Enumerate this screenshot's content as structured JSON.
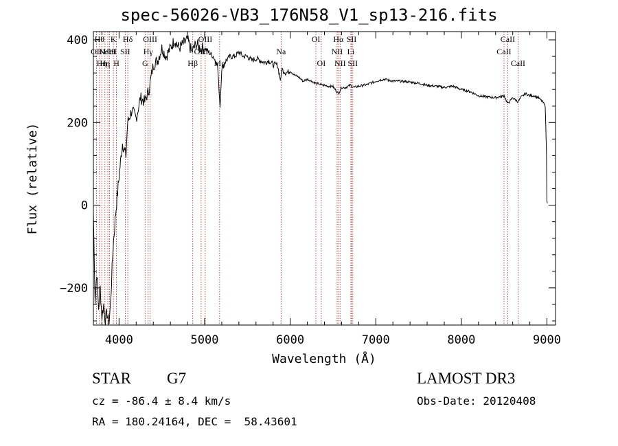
{
  "chart_data": {
    "type": "line",
    "title": "spec-56026-VB3_176N58_V1_sp13-216.fits",
    "xlabel": "Wavelength (Å)",
    "ylabel": "Flux (relative)",
    "xlim": [
      3700,
      9100
    ],
    "ylim": [
      -290,
      420
    ],
    "x_ticks": [
      4000,
      5000,
      6000,
      7000,
      8000,
      9000
    ],
    "x_tick_labels": [
      "4000",
      "5000",
      "6000",
      "7000",
      "8000",
      "9000"
    ],
    "y_ticks": [
      -200,
      0,
      200,
      400
    ],
    "y_tick_labels": [
      "−200",
      "0",
      "200",
      "400"
    ],
    "series": [
      {
        "name": "flux",
        "x": [
          3700,
          3720,
          3740,
          3760,
          3780,
          3800,
          3820,
          3840,
          3860,
          3880,
          3900,
          3930,
          3960,
          4000,
          4040,
          4080,
          4100,
          4150,
          4200,
          4250,
          4300,
          4350,
          4400,
          4450,
          4500,
          4550,
          4600,
          4650,
          4700,
          4750,
          4800,
          4850,
          4900,
          4950,
          5000,
          5050,
          5100,
          5150,
          5180,
          5200,
          5250,
          5300,
          5350,
          5400,
          5450,
          5500,
          5550,
          5600,
          5650,
          5700,
          5750,
          5800,
          5850,
          5890,
          5900,
          5950,
          6000,
          6050,
          6100,
          6150,
          6200,
          6250,
          6300,
          6350,
          6400,
          6450,
          6500,
          6563,
          6600,
          6650,
          6700,
          6750,
          6800,
          6900,
          7000,
          7100,
          7200,
          7300,
          7400,
          7500,
          7600,
          7700,
          7800,
          7900,
          8000,
          8100,
          8200,
          8300,
          8400,
          8500,
          8542,
          8600,
          8662,
          8700,
          8750,
          8800,
          8850,
          8900,
          8950,
          8980,
          8995,
          9000,
          9005
        ],
        "y": [
          -20,
          -230,
          -160,
          -250,
          -200,
          -270,
          -240,
          -280,
          -260,
          -290,
          -240,
          -100,
          -20,
          70,
          150,
          120,
          200,
          230,
          210,
          260,
          250,
          280,
          340,
          350,
          380,
          360,
          380,
          400,
          380,
          390,
          400,
          370,
          390,
          380,
          380,
          370,
          360,
          340,
          240,
          330,
          350,
          360,
          360,
          370,
          360,
          360,
          350,
          355,
          350,
          345,
          350,
          340,
          340,
          300,
          330,
          320,
          325,
          315,
          310,
          300,
          305,
          300,
          295,
          292,
          290,
          288,
          287,
          270,
          285,
          285,
          290,
          285,
          288,
          292,
          300,
          305,
          300,
          300,
          298,
          295,
          290,
          288,
          285,
          288,
          280,
          275,
          265,
          262,
          260,
          265,
          245,
          260,
          250,
          262,
          270,
          265,
          265,
          260,
          250,
          240,
          120,
          10,
          5
        ]
      }
    ],
    "lines": [
      {
        "wl": 3736,
        "label": "OII",
        "row": 2
      },
      {
        "wl": 3771,
        "label": "Hθ",
        "row": 1
      },
      {
        "wl": 3798,
        "label": "Hη",
        "row": 3
      },
      {
        "wl": 3835,
        "label": "Hη",
        "row": 3
      },
      {
        "wl": 3869,
        "label": "NeIII",
        "row": 2
      },
      {
        "wl": 3889,
        "label": "HeI",
        "row": 2
      },
      {
        "wl": 3934,
        "label": "K",
        "row": 1
      },
      {
        "wl": 3969,
        "label": "H",
        "row": 3
      },
      {
        "wl": 4072,
        "label": "SII",
        "row": 2
      },
      {
        "wl": 4102,
        "label": "Hδ",
        "row": 1
      },
      {
        "wl": 4304,
        "label": "G",
        "row": 3
      },
      {
        "wl": 4340,
        "label": "Hγ",
        "row": 2
      },
      {
        "wl": 4363,
        "label": "OIII",
        "row": 1
      },
      {
        "wl": 4861,
        "label": "Hβ",
        "row": 3
      },
      {
        "wl": 4959,
        "label": "OIII",
        "row": 2
      },
      {
        "wl": 5007,
        "label": "OIII",
        "row": 1
      },
      {
        "wl": 5175,
        "label": "Mg",
        "row": 3
      },
      {
        "wl": 5893,
        "label": "Na",
        "row": 2
      },
      {
        "wl": 6300,
        "label": "OI",
        "row": 1
      },
      {
        "wl": 6363,
        "label": "OI",
        "row": 3
      },
      {
        "wl": 6548,
        "label": "NII",
        "row": 2
      },
      {
        "wl": 6563,
        "label": "Hα",
        "row": 1
      },
      {
        "wl": 6583,
        "label": "NII",
        "row": 3
      },
      {
        "wl": 6708,
        "label": "Li",
        "row": 2
      },
      {
        "wl": 6716,
        "label": "SII",
        "row": 1
      },
      {
        "wl": 6731,
        "label": "SII",
        "row": 3
      },
      {
        "wl": 8498,
        "label": "CaII",
        "row": 2
      },
      {
        "wl": 8542,
        "label": "CaII",
        "row": 1
      },
      {
        "wl": 8662,
        "label": "CaII",
        "row": 3
      }
    ]
  },
  "info": {
    "class": "STAR",
    "subclass": "G7",
    "cz": "cz = -86.4 ± 8.4 km/s",
    "radec": "RA = 180.24164, DEC =  58.43601",
    "survey": "LAMOST DR3",
    "obsdate": "Obs-Date: 20120408"
  }
}
